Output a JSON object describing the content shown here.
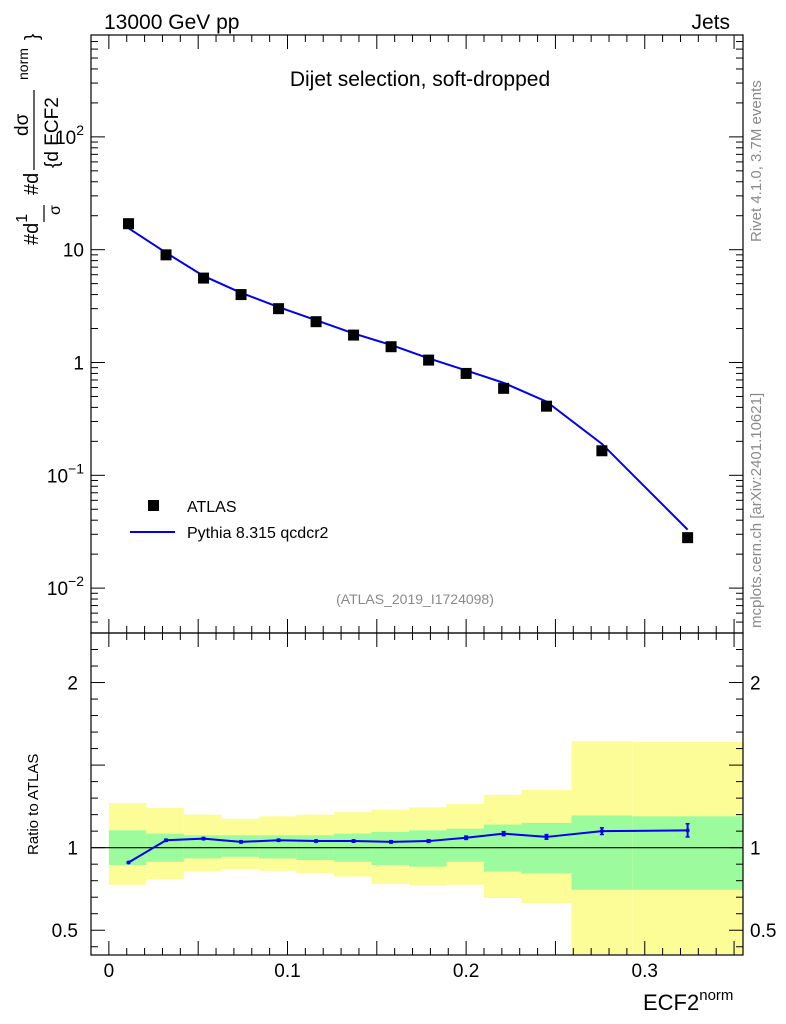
{
  "chart_data": {
    "type": "line",
    "header": {
      "left": "13000 GeV pp",
      "right": "Jets"
    },
    "title": "Dijet selection, soft-dropped",
    "analysis_id": "(ATLAS_2019_I1724098)",
    "side_label_top": "Rivet 4.1.0,  3.7M events",
    "side_label_bottom": "mcplots.cern.ch [arXiv:2401.10621]",
    "xlabel": "ECF2",
    "xlabel_sup": "norm",
    "xlim": [
      -0.01,
      0.355
    ],
    "xticks": [
      {
        "value": 0,
        "label": "0"
      },
      {
        "value": 0.1,
        "label": "0.1"
      },
      {
        "value": 0.2,
        "label": "0.2"
      },
      {
        "value": 0.3,
        "label": "0.3"
      }
    ],
    "main": {
      "yscale": "log",
      "ylim": [
        0.004,
        800
      ],
      "ylabel": "#d1/σ #d dσ / {d ECF2 norm}",
      "yticks": [
        {
          "value": 0.01,
          "base": "10",
          "exp": "−2"
        },
        {
          "value": 0.1,
          "base": "10",
          "exp": "−1"
        },
        {
          "value": 1,
          "base": "1",
          "exp": ""
        },
        {
          "value": 10,
          "base": "10",
          "exp": ""
        },
        {
          "value": 100,
          "base": "10",
          "exp": "2"
        }
      ]
    },
    "legend": [
      {
        "label": "ATLAS",
        "kind": "marker"
      },
      {
        "label": "Pythia 8.315 qcdcr2",
        "kind": "line",
        "color": "#0000ee"
      }
    ],
    "series": [
      {
        "name": "ATLAS",
        "kind": "data",
        "x": [
          0.011,
          0.032,
          0.053,
          0.074,
          0.095,
          0.116,
          0.137,
          0.158,
          0.179,
          0.2,
          0.221,
          0.245,
          0.276,
          0.324
        ],
        "values": [
          17.0,
          9.0,
          5.6,
          4.0,
          3.0,
          2.3,
          1.75,
          1.38,
          1.05,
          0.8,
          0.59,
          0.41,
          0.165,
          0.028
        ]
      },
      {
        "name": "Pythia 8.315 qcdcr2",
        "kind": "mc",
        "color": "#0000ee",
        "x": [
          0.011,
          0.032,
          0.053,
          0.074,
          0.095,
          0.116,
          0.137,
          0.158,
          0.179,
          0.2,
          0.221,
          0.245,
          0.276,
          0.324
        ],
        "values": [
          15.5,
          9.4,
          5.85,
          4.15,
          3.1,
          2.37,
          1.81,
          1.43,
          1.09,
          0.85,
          0.66,
          0.45,
          0.19,
          0.033
        ]
      }
    ],
    "ratio": {
      "ylabel": "Ratio to ATLAS",
      "ylim": [
        0.35,
        2.3
      ],
      "yticks": [
        {
          "value": 0.5,
          "label": "0.5"
        },
        {
          "value": 1,
          "label": "1"
        },
        {
          "value": 2,
          "label": "2"
        }
      ],
      "bands": {
        "edges": [
          0,
          0.021,
          0.042,
          0.063,
          0.084,
          0.105,
          0.126,
          0.147,
          0.168,
          0.189,
          0.21,
          0.231,
          0.259,
          0.293,
          0.355
        ],
        "inner_color": "#9cfb9c",
        "outer_color": "#fdfd98",
        "inner_lo": [
          0.895,
          0.915,
          0.935,
          0.945,
          0.935,
          0.925,
          0.915,
          0.895,
          0.885,
          0.915,
          0.855,
          0.845,
          0.745,
          0.745
        ],
        "inner_hi": [
          1.105,
          1.085,
          1.075,
          1.075,
          1.075,
          1.075,
          1.085,
          1.095,
          1.105,
          1.115,
          1.14,
          1.15,
          1.195,
          1.19
        ],
        "outer_lo": [
          0.775,
          0.81,
          0.855,
          0.87,
          0.86,
          0.845,
          0.825,
          0.78,
          0.77,
          0.775,
          0.695,
          0.665,
          0.355,
          0.355
        ],
        "outer_hi": [
          1.27,
          1.24,
          1.2,
          1.175,
          1.19,
          1.2,
          1.215,
          1.23,
          1.245,
          1.265,
          1.32,
          1.35,
          1.645,
          1.64
        ]
      },
      "mc_ratio": {
        "x": [
          0.011,
          0.032,
          0.053,
          0.074,
          0.095,
          0.116,
          0.137,
          0.158,
          0.179,
          0.2,
          0.221,
          0.245,
          0.276,
          0.324
        ],
        "values": [
          0.91,
          1.045,
          1.055,
          1.035,
          1.045,
          1.04,
          1.04,
          1.035,
          1.04,
          1.06,
          1.085,
          1.065,
          1.1,
          1.105
        ],
        "errors": [
          0.003,
          0.006,
          0.006,
          0.006,
          0.006,
          0.006,
          0.007,
          0.007,
          0.008,
          0.01,
          0.012,
          0.014,
          0.02,
          0.04
        ]
      }
    }
  }
}
